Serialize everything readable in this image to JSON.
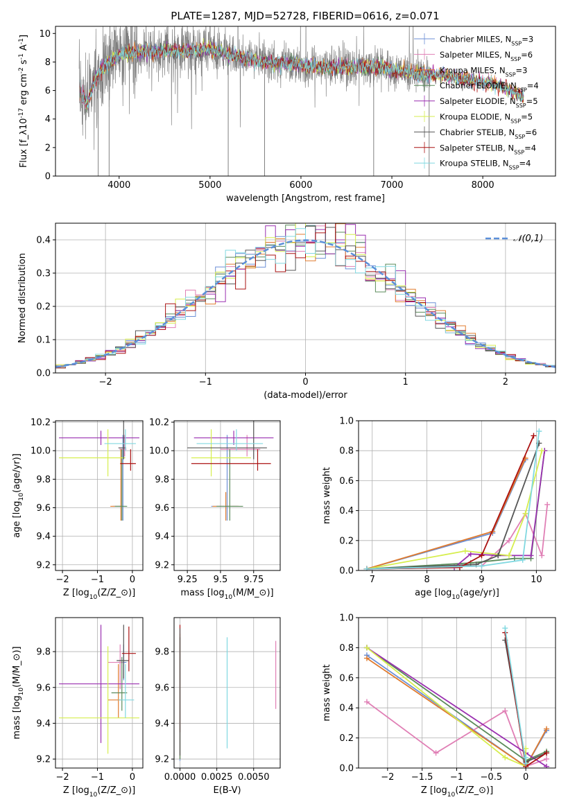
{
  "figure": {
    "title": "PLATE=1287, MJD=52728, FIBERID=0616, z=0.071"
  },
  "colors": {
    "c1": "#6b8fd6",
    "c2": "#e07fb5",
    "c3": "#e07b2e",
    "c4": "#5a8a5a",
    "c5": "#9a2fb0",
    "c6": "#d6ee4e",
    "c7": "#555555",
    "c8": "#aa1111",
    "c9": "#80d8e0",
    "data": "#808080",
    "gauss": "#5b8fd9"
  },
  "legend_top": [
    "Chabrier MILES, N$_{SSP}$=3",
    "Salpeter MILES, N$_{SSP}$=6",
    "Kroupa MILES, N$_{SSP}$=3",
    "Chabrier ELODIE, N$_{SSP}$=4",
    "Salpeter ELODIE, N$_{SSP}$=5",
    "Kroupa ELODIE, N$_{SSP}$=5",
    "Chabrier STELIB, N$_{SSP}$=6",
    "Salpeter STELIB, N$_{SSP}$=4",
    "Kroupa STELIB, N$_{SSP}$=4"
  ],
  "chart_data": [
    {
      "id": "spectrum",
      "type": "line",
      "xlabel": "wavelength [Angstrom, rest frame]",
      "ylabel": "Flux [f$_\\lambda$10$^{-17}$ erg cm$^{-2}$ s$^{-1}$ A$^{-1}$]",
      "xlim": [
        3300,
        8800
      ],
      "ylim": [
        0,
        10.5
      ],
      "xticks": [
        4000,
        5000,
        6000,
        7000,
        8000
      ],
      "yticks": [
        0,
        2,
        4,
        6,
        8,
        10
      ],
      "continuum": [
        [
          3570,
          6.0
        ],
        [
          3650,
          5.0
        ],
        [
          3720,
          6.5
        ],
        [
          3800,
          7.5
        ],
        [
          3900,
          8.0
        ],
        [
          4000,
          8.5
        ],
        [
          4200,
          8.7
        ],
        [
          4500,
          8.8
        ],
        [
          4800,
          8.8
        ],
        [
          5000,
          8.9
        ],
        [
          5300,
          8.4
        ],
        [
          5600,
          8.0
        ],
        [
          6000,
          7.8
        ],
        [
          6300,
          7.6
        ],
        [
          6600,
          7.7
        ],
        [
          6900,
          7.6
        ],
        [
          7200,
          7.2
        ],
        [
          7500,
          7.1
        ],
        [
          7800,
          6.8
        ],
        [
          8100,
          6.5
        ],
        [
          8300,
          6.0
        ],
        [
          8450,
          5.6
        ]
      ]
    },
    {
      "id": "residual-hist",
      "type": "step",
      "xlabel": "(data-model)/error",
      "ylabel": "Normed distribution",
      "xlim": [
        -2.5,
        2.5
      ],
      "ylim": [
        0,
        0.45
      ],
      "xticks": [
        -2,
        -1,
        0,
        1,
        2
      ],
      "yticks": [
        0.0,
        0.1,
        0.2,
        0.3,
        0.4
      ],
      "bin_width": 0.1,
      "legend": "$\\mathcal{N}(0,1)$"
    },
    {
      "id": "age-vs-Z",
      "type": "errorbar",
      "xlabel": "Z [log$_{10}$(Z/Z$_\\odot$)]",
      "ylabel": "age  [log$_{10}$(age/yr)]",
      "xlim": [
        -2.2,
        0.3
      ],
      "ylim": [
        9.16,
        10.21
      ],
      "xticks": [
        -2,
        -1,
        0
      ],
      "yticks": [
        9.2,
        9.4,
        9.6,
        9.8,
        10.0,
        10.2
      ],
      "points": [
        {
          "x": -0.27,
          "xerr": [
            0.3,
            0.08
          ],
          "y": 9.61,
          "yerr": [
            0.1,
            0.5
          ],
          "c": "c1"
        },
        {
          "x": -0.22,
          "xerr": [
            0.15,
            0.05
          ],
          "y": 10.01,
          "yerr": [
            0.05,
            0.1
          ],
          "c": "c2"
        },
        {
          "x": -0.33,
          "xerr": [
            0.3,
            0.05
          ],
          "y": 9.61,
          "yerr": [
            0.1,
            0.4
          ],
          "c": "c3"
        },
        {
          "x": -0.3,
          "xerr": [
            0.2,
            0.15
          ],
          "y": 9.61,
          "yerr": [
            0.1,
            0.4
          ],
          "c": "c4"
        },
        {
          "x": -0.9,
          "xerr": [
            1.2,
            1.1
          ],
          "y": 10.09,
          "yerr": [
            0.05,
            0.05
          ],
          "c": "c5"
        },
        {
          "x": -0.7,
          "xerr": [
            1.4,
            0.5
          ],
          "y": 9.95,
          "yerr": [
            0.13,
            0.2
          ],
          "c": "c6"
        },
        {
          "x": -0.25,
          "xerr": [
            0.15,
            0.07
          ],
          "y": 10.02,
          "yerr": [
            0.08,
            0.2
          ],
          "c": "c7"
        },
        {
          "x": -0.05,
          "xerr": [
            0.3,
            0.15
          ],
          "y": 9.91,
          "yerr": [
            0.05,
            0.1
          ],
          "c": "c8"
        },
        {
          "x": -0.2,
          "xerr": [
            0.6,
            0.3
          ],
          "y": 10.05,
          "yerr": [
            0.05,
            0.1
          ],
          "c": "c9"
        }
      ]
    },
    {
      "id": "age-vs-mass",
      "type": "errorbar",
      "xlabel": "mass [log$_{10}$(M/M$_\\odot$)]",
      "ylabel": "",
      "xlim": [
        9.15,
        9.95
      ],
      "ylim": [
        9.16,
        10.21
      ],
      "xticks": [
        9.25,
        9.5,
        9.75
      ],
      "yticks": [
        9.2,
        9.4,
        9.6,
        9.8,
        10.0,
        10.2
      ],
      "points": [
        {
          "x": 9.55,
          "xerr": [
            0.12,
            0.08
          ],
          "y": 9.61,
          "yerr": [
            0.1,
            0.5
          ],
          "c": "c1"
        },
        {
          "x": 9.7,
          "xerr": [
            0.2,
            0.1
          ],
          "y": 10.01,
          "yerr": [
            0.05,
            0.1
          ],
          "c": "c2"
        },
        {
          "x": 9.54,
          "xerr": [
            0.1,
            0.1
          ],
          "y": 9.61,
          "yerr": [
            0.1,
            0.1
          ],
          "c": "c3"
        },
        {
          "x": 9.57,
          "xerr": [
            0.1,
            0.1
          ],
          "y": 9.61,
          "yerr": [
            0.1,
            0.4
          ],
          "c": "c4"
        },
        {
          "x": 9.6,
          "xerr": [
            0.3,
            0.3
          ],
          "y": 10.09,
          "yerr": [
            0.05,
            0.05
          ],
          "c": "c5"
        },
        {
          "x": 9.43,
          "xerr": [
            0.15,
            0.3
          ],
          "y": 9.95,
          "yerr": [
            0.13,
            0.2
          ],
          "c": "c6"
        },
        {
          "x": 9.75,
          "xerr": [
            0.5,
            0.1
          ],
          "y": 10.02,
          "yerr": [
            0.08,
            0.2
          ],
          "c": "c7"
        },
        {
          "x": 9.78,
          "xerr": [
            0.5,
            0.1
          ],
          "y": 9.91,
          "yerr": [
            0.05,
            0.1
          ],
          "c": "c8"
        },
        {
          "x": 9.62,
          "xerr": [
            0.3,
            0.2
          ],
          "y": 10.05,
          "yerr": [
            0.05,
            0.1
          ],
          "c": "c9"
        }
      ]
    },
    {
      "id": "weight-vs-age",
      "type": "line",
      "xlabel": "age  [log$_{10}$(age/yr)]",
      "ylabel": "mass weight",
      "xlim": [
        6.75,
        10.35
      ],
      "ylim": [
        0,
        1
      ],
      "xticks": [
        7,
        8,
        9,
        10
      ],
      "yticks": [
        0.0,
        0.2,
        0.4,
        0.6,
        0.8,
        1.0
      ],
      "series": [
        {
          "c": "c1",
          "x": [
            6.9,
            9.2,
            9.8
          ],
          "y": [
            0.01,
            0.25,
            0.74
          ]
        },
        {
          "c": "c2",
          "x": [
            6.9,
            9.0,
            9.5,
            9.8,
            10.1,
            10.2
          ],
          "y": [
            0.01,
            0.03,
            0.2,
            0.38,
            0.1,
            0.44
          ]
        },
        {
          "c": "c3",
          "x": [
            6.9,
            9.2,
            9.8
          ],
          "y": [
            0.01,
            0.26,
            0.75
          ]
        },
        {
          "c": "c4",
          "x": [
            6.9,
            8.8,
            9.6,
            9.9,
            10.15
          ],
          "y": [
            0.01,
            0.05,
            0.08,
            0.08,
            0.8
          ]
        },
        {
          "c": "c5",
          "x": [
            6.9,
            8.5,
            8.8,
            9.3,
            9.9,
            10.15
          ],
          "y": [
            0.01,
            0.02,
            0.11,
            0.1,
            0.1,
            0.8
          ]
        },
        {
          "c": "c6",
          "x": [
            6.9,
            8.7,
            9.5,
            9.8,
            10.1
          ],
          "y": [
            0.01,
            0.13,
            0.1,
            0.38,
            0.8
          ]
        },
        {
          "c": "c7",
          "x": [
            6.9,
            8.9,
            9.3,
            10.05
          ],
          "y": [
            0.01,
            0.04,
            0.1,
            0.85
          ]
        },
        {
          "c": "c8",
          "x": [
            6.9,
            8.6,
            9.0,
            9.95
          ],
          "y": [
            0.01,
            0.02,
            0.1,
            0.9
          ]
        },
        {
          "c": "c9",
          "x": [
            6.9,
            9.0,
            9.75,
            10.05
          ],
          "y": [
            0.01,
            0.03,
            0.07,
            0.93
          ]
        }
      ]
    },
    {
      "id": "mass-vs-Z",
      "type": "errorbar",
      "xlabel": "Z [log$_{10}$(Z/Z$_\\odot$)]",
      "ylabel": "mass [log$_{10}$(M/M$_\\odot$)]",
      "xlim": [
        -2.2,
        0.3
      ],
      "ylim": [
        9.15,
        9.99
      ],
      "xticks": [
        -2,
        -1,
        0
      ],
      "yticks": [
        9.2,
        9.4,
        9.6,
        9.8
      ],
      "points": [
        {
          "x": -0.25,
          "xerr": [
            0.15,
            0.08
          ],
          "y": 9.74,
          "yerr": [
            0.1,
            0.1
          ],
          "c": "c1"
        },
        {
          "x": -0.35,
          "xerr": [
            0.35,
            0.08
          ],
          "y": 9.74,
          "yerr": [
            0.15,
            0.1
          ],
          "c": "c2"
        },
        {
          "x": -0.4,
          "xerr": [
            0.3,
            0.1
          ],
          "y": 9.53,
          "yerr": [
            0.1,
            0.2
          ],
          "c": "c3"
        },
        {
          "x": -0.3,
          "xerr": [
            0.3,
            0.15
          ],
          "y": 9.57,
          "yerr": [
            0.1,
            0.2
          ],
          "c": "c4"
        },
        {
          "x": -0.9,
          "xerr": [
            1.2,
            1.1
          ],
          "y": 9.62,
          "yerr": [
            0.33,
            0.33
          ],
          "c": "c5"
        },
        {
          "x": -0.7,
          "xerr": [
            1.4,
            0.9
          ],
          "y": 9.43,
          "yerr": [
            0.2,
            0.4
          ],
          "c": "c6"
        },
        {
          "x": -0.25,
          "xerr": [
            0.2,
            0.15
          ],
          "y": 9.75,
          "yerr": [
            0.1,
            0.2
          ],
          "c": "c7"
        },
        {
          "x": -0.1,
          "xerr": [
            0.2,
            0.2
          ],
          "y": 9.79,
          "yerr": [
            0.1,
            0.15
          ],
          "c": "c8"
        },
        {
          "x": -0.2,
          "xerr": [
            0.2,
            0.25
          ],
          "y": 9.53,
          "yerr": [
            0.1,
            0.2
          ],
          "c": "c9"
        }
      ]
    },
    {
      "id": "mass-vs-ebv",
      "type": "errorbar",
      "xlabel": "E(B-V)",
      "ylabel": "",
      "xlim": [
        -0.0004,
        0.0068
      ],
      "ylim": [
        9.15,
        9.99
      ],
      "xticks": [
        0.0,
        0.0025,
        0.005
      ],
      "xtick_labels": [
        "0.0000",
        "0.0025",
        "0.0050"
      ],
      "yticks": [
        9.2,
        9.4,
        9.6,
        9.8
      ],
      "points": [
        {
          "x": 0.0,
          "y": 9.55,
          "yerr": [
            0.36,
            0.33
          ],
          "c": "c1"
        },
        {
          "x": 0.0,
          "y": 9.6,
          "yerr": [
            0.4,
            0.3
          ],
          "c": "c3"
        },
        {
          "x": 0.0,
          "y": 9.6,
          "yerr": [
            0.4,
            0.28
          ],
          "c": "c4"
        },
        {
          "x": 0.0,
          "y": 9.65,
          "yerr": [
            0.3,
            0.3
          ],
          "c": "c8"
        },
        {
          "x": 0.0,
          "y": 9.6,
          "yerr": [
            0.38,
            0.33
          ],
          "c": "c7"
        },
        {
          "x": 0.0032,
          "y": 9.55,
          "yerr": [
            0.29,
            0.33
          ],
          "c": "c9"
        },
        {
          "x": 0.0065,
          "y": 9.67,
          "yerr": [
            0.19,
            0.19
          ],
          "c": "c2"
        }
      ]
    },
    {
      "id": "weight-vs-Z",
      "type": "line",
      "xlabel": "Z [log$_{10}$(Z/Z$_\\odot$)]",
      "ylabel": "mass weight",
      "xlim": [
        -2.42,
        0.43
      ],
      "ylim": [
        0,
        1
      ],
      "xticks": [
        -2.0,
        -1.5,
        -1.0,
        -0.5,
        0.0
      ],
      "yticks": [
        0.0,
        0.2,
        0.4,
        0.6,
        0.8,
        1.0
      ],
      "series": [
        {
          "c": "c1",
          "x": [
            -2.3,
            0.0,
            0.3
          ],
          "y": [
            0.75,
            0.01,
            0.25
          ]
        },
        {
          "c": "c2",
          "x": [
            -2.3,
            -1.3,
            -0.3,
            0.0,
            0.3
          ],
          "y": [
            0.44,
            0.1,
            0.38,
            0.01,
            0.06
          ]
        },
        {
          "c": "c3",
          "x": [
            -2.3,
            0.0,
            0.3
          ],
          "y": [
            0.73,
            0.01,
            0.26
          ]
        },
        {
          "c": "c4",
          "x": [
            -2.3,
            0.0,
            0.3
          ],
          "y": [
            0.8,
            0.05,
            0.11
          ]
        },
        {
          "c": "c5",
          "x": [
            -2.3,
            0.0,
            0.3
          ],
          "y": [
            0.8,
            0.1,
            0.01
          ]
        },
        {
          "c": "c6",
          "x": [
            -2.3,
            -0.3,
            0.0,
            0.0
          ],
          "y": [
            0.8,
            0.07,
            0.01,
            0.13
          ]
        },
        {
          "c": "c7",
          "x": [
            -0.3,
            0.0,
            0.3
          ],
          "y": [
            0.85,
            0.04,
            0.1
          ]
        },
        {
          "c": "c8",
          "x": [
            -0.3,
            0.0,
            0.3
          ],
          "y": [
            0.9,
            0.01,
            0.1
          ]
        },
        {
          "c": "c9",
          "x": [
            -0.3,
            0.0,
            0.0
          ],
          "y": [
            0.93,
            0.03,
            0.07
          ]
        }
      ]
    }
  ]
}
